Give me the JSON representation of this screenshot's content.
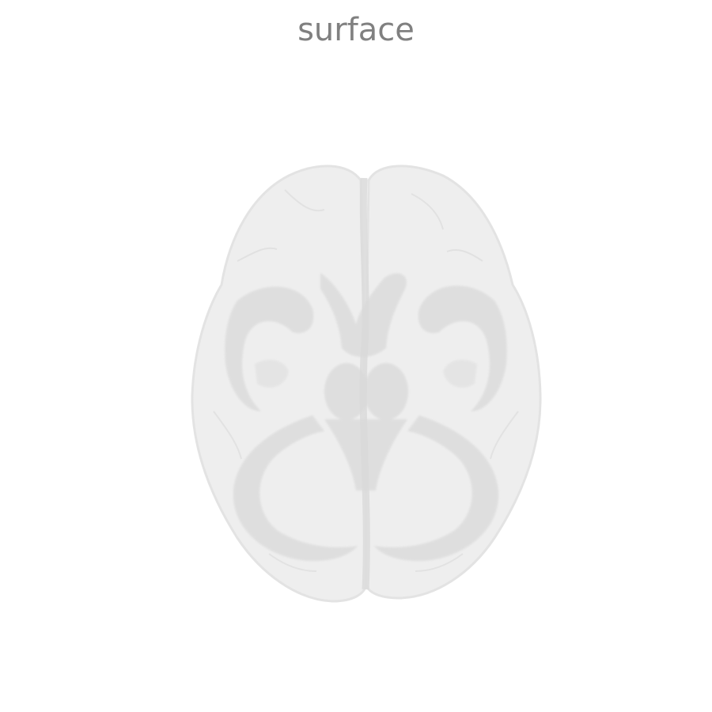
{
  "plot": {
    "title": "surface"
  },
  "colors": {
    "background": "#ffffff",
    "title": "#808080",
    "surface_fill": "#eeeeee",
    "surface_edge": "#e3e3e3",
    "inner_structure": "#d9d9d9"
  }
}
